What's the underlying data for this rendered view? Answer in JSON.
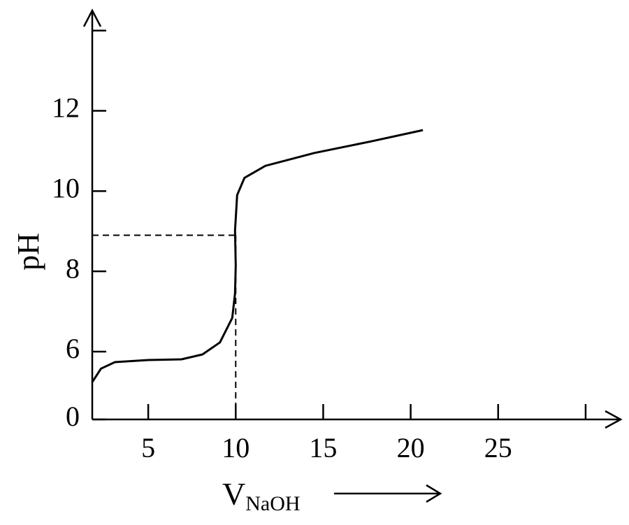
{
  "chart_data": {
    "type": "line",
    "x_label": "V",
    "x_label_sub": "NaOH",
    "y_label": "pH",
    "xlim": [
      1.8,
      32
    ],
    "ylim": [
      0,
      14.5
    ],
    "y_axis_break": [
      0,
      6
    ],
    "xticks": [
      5,
      10,
      15,
      20,
      25,
      {
        "value": 30,
        "label": null
      }
    ],
    "yticks": [
      0,
      6,
      8,
      10,
      12,
      {
        "value": 14,
        "label": null
      }
    ],
    "series": [
      {
        "color": "#000000",
        "x": [
          1.8,
          2.3,
          3.1,
          5,
          6.9,
          8.1,
          9.1,
          9.8,
          9.96,
          10,
          9.96,
          10.08,
          10.5,
          11.7,
          14.5,
          17.75,
          20.7
        ],
        "values": [
          3.3,
          4.5,
          5.07,
          5.26,
          5.32,
          5.75,
          6.23,
          6.84,
          7.45,
          8.15,
          9.02,
          9.9,
          10.33,
          10.63,
          10.95,
          11.24,
          11.52
        ]
      }
    ],
    "equivalence_point": {
      "x": 10,
      "y": 8.9
    }
  }
}
